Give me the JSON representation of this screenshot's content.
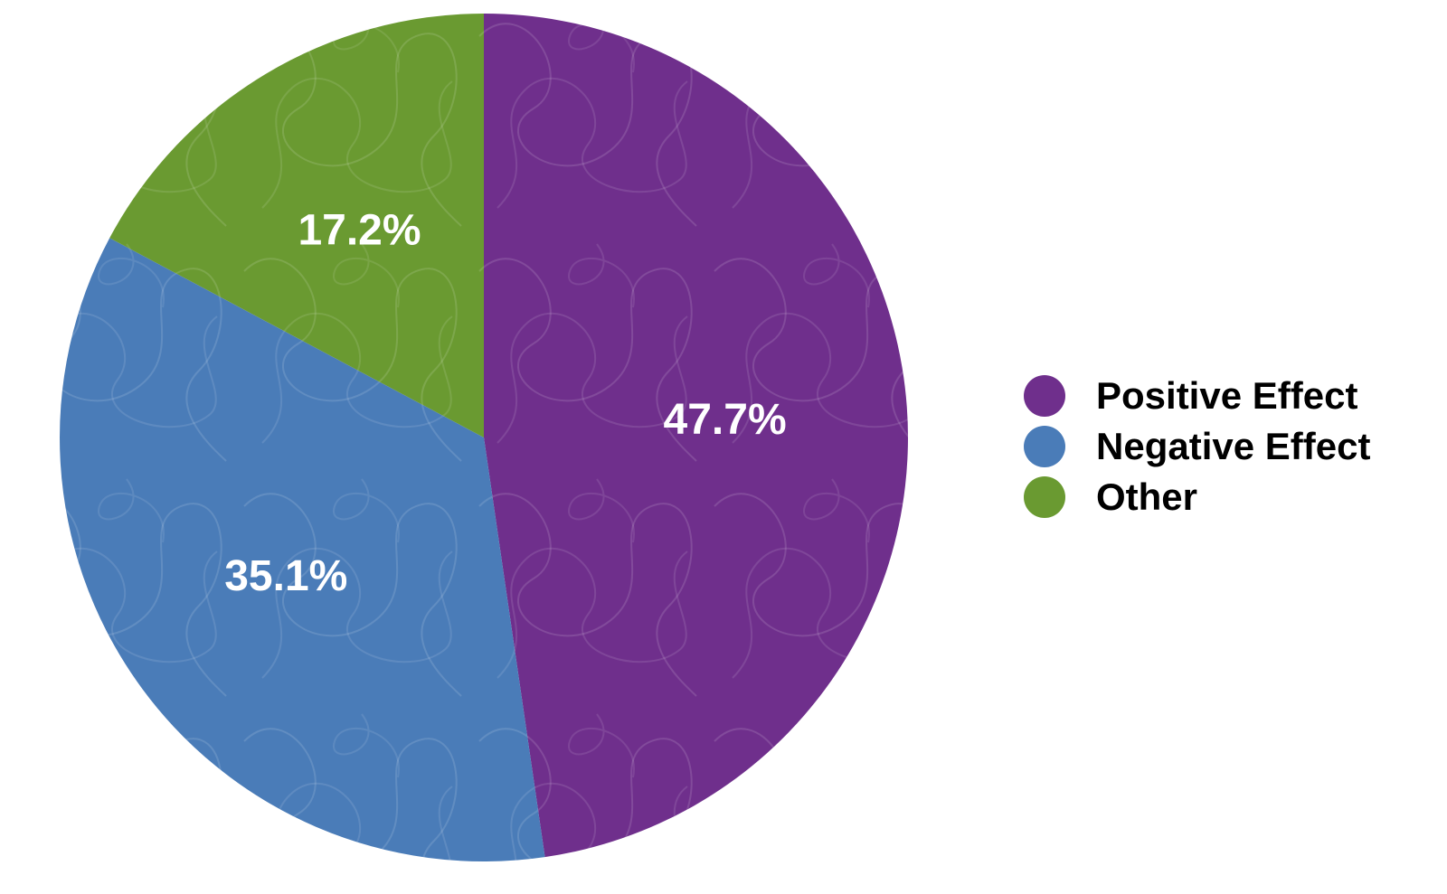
{
  "chart_data": {
    "type": "pie",
    "categories": [
      "Positive Effect",
      "Negative Effect",
      "Other"
    ],
    "values": [
      47.7,
      35.1,
      17.2
    ],
    "value_labels": [
      "47.7%",
      "35.1%",
      "17.2%"
    ],
    "colors": [
      "#6F2F8C",
      "#4A7CB8",
      "#6A9A31"
    ],
    "start_angle_deg": 0,
    "direction": "clockwise",
    "title": "",
    "legend": {
      "placement": "right",
      "entries": [
        "Positive Effect",
        "Negative Effect",
        "Other"
      ]
    },
    "texture": "scribble-lines"
  }
}
